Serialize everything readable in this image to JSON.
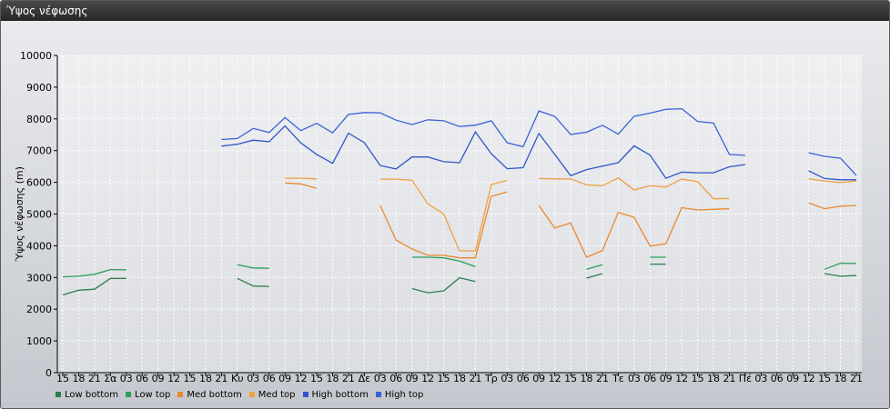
{
  "window": {
    "title": "Ύψος νέφωσης"
  },
  "chart_data": {
    "type": "line",
    "ylabel": "Ύψος νέφωσης (m)",
    "xlabel": "",
    "ylim": [
      0,
      10000
    ],
    "yticks": [
      0,
      1000,
      2000,
      3000,
      4000,
      5000,
      6000,
      7000,
      8000,
      9000,
      10000
    ],
    "grid": true,
    "legend_position": "bottom-left",
    "x_tick_labels": [
      "15",
      "18",
      "21",
      "Σα",
      "03",
      "06",
      "09",
      "12",
      "15",
      "18",
      "21",
      "Κυ",
      "03",
      "06",
      "09",
      "12",
      "15",
      "18",
      "21",
      "Δε",
      "03",
      "06",
      "09",
      "12",
      "15",
      "18",
      "21",
      "Τρ",
      "03",
      "06",
      "09",
      "12",
      "15",
      "18",
      "21",
      "Τε",
      "03",
      "06",
      "09",
      "12",
      "15",
      "18",
      "21",
      "Πέ",
      "03",
      "06",
      "09",
      "12",
      "15",
      "18",
      "21"
    ],
    "series": [
      {
        "name": "Low bottom",
        "color": "#2e7d4f",
        "values": [
          2450,
          2600,
          2630,
          2970,
          2970,
          null,
          null,
          null,
          null,
          null,
          null,
          2970,
          2730,
          2720,
          null,
          null,
          null,
          null,
          null,
          null,
          null,
          null,
          2650,
          2520,
          2580,
          2990,
          2870,
          null,
          null,
          null,
          null,
          null,
          null,
          2980,
          3120,
          null,
          null,
          3420,
          3420,
          null,
          null,
          null,
          null,
          null,
          null,
          null,
          null,
          null,
          3120,
          3040,
          3060
        ]
      },
      {
        "name": "Low top",
        "color": "#2e9e5b",
        "values": [
          3020,
          3040,
          3100,
          3250,
          3240,
          null,
          null,
          null,
          null,
          null,
          null,
          3400,
          3300,
          3290,
          null,
          null,
          null,
          null,
          null,
          null,
          null,
          null,
          3640,
          3640,
          3620,
          3520,
          3340,
          null,
          null,
          null,
          null,
          null,
          null,
          3260,
          3400,
          null,
          null,
          3640,
          3640,
          null,
          null,
          null,
          null,
          null,
          null,
          null,
          null,
          null,
          3260,
          3450,
          3440
        ]
      },
      {
        "name": "Med bottom",
        "color": "#e8892e",
        "values": [
          null,
          null,
          null,
          null,
          null,
          null,
          null,
          null,
          null,
          null,
          null,
          null,
          null,
          null,
          5980,
          5950,
          5810,
          null,
          null,
          null,
          5270,
          4180,
          3900,
          3700,
          3700,
          3620,
          3620,
          5560,
          5700,
          null,
          5270,
          4560,
          4720,
          3640,
          3850,
          5050,
          4900,
          3990,
          4060,
          5200,
          5130,
          5150,
          5170,
          null,
          null,
          null,
          null,
          5350,
          5170,
          5250,
          5270
        ]
      },
      {
        "name": "Med top",
        "color": "#f0a040",
        "values": [
          null,
          null,
          null,
          null,
          null,
          null,
          null,
          null,
          null,
          null,
          null,
          null,
          null,
          null,
          6130,
          6130,
          6110,
          null,
          null,
          null,
          6100,
          6100,
          6070,
          5320,
          5000,
          3840,
          3840,
          5930,
          6060,
          null,
          6120,
          6110,
          6110,
          5920,
          5890,
          6140,
          5760,
          5890,
          5850,
          6100,
          6020,
          5480,
          5490,
          null,
          null,
          null,
          null,
          6110,
          6040,
          5990,
          6040
        ]
      },
      {
        "name": "High bottom",
        "color": "#2f55c8",
        "values": [
          null,
          null,
          null,
          null,
          null,
          null,
          null,
          null,
          null,
          null,
          7140,
          7200,
          7330,
          7280,
          7780,
          7240,
          6880,
          6600,
          7550,
          7250,
          6530,
          6420,
          6800,
          6800,
          6650,
          6620,
          7590,
          6900,
          6430,
          6460,
          7540,
          6880,
          6210,
          6400,
          6510,
          6620,
          7150,
          6860,
          6130,
          6320,
          6300,
          6300,
          6490,
          6560,
          null,
          null,
          null,
          6360,
          6120,
          6080,
          6080
        ]
      },
      {
        "name": "High top",
        "color": "#3a62d8",
        "values": [
          null,
          null,
          null,
          null,
          null,
          null,
          null,
          null,
          null,
          null,
          7350,
          7380,
          7700,
          7570,
          8040,
          7630,
          7860,
          7560,
          8140,
          8200,
          8190,
          7960,
          7820,
          7970,
          7940,
          7760,
          7800,
          7940,
          7250,
          7120,
          8250,
          8080,
          7510,
          7580,
          7800,
          7520,
          8080,
          8180,
          8300,
          8320,
          7920,
          7870,
          6880,
          6850,
          null,
          null,
          null,
          6930,
          6820,
          6760,
          6220
        ]
      }
    ]
  }
}
